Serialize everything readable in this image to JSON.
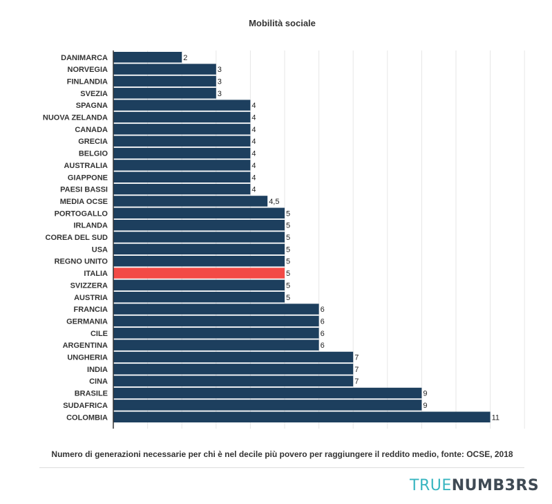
{
  "title": "Mobilità sociale",
  "caption": "Numero di generazioni necessarie per chi è nel decile più povero per raggiungere il reddito medio, fonte: OCSE, 2018",
  "brand": {
    "part1": "TRUE",
    "part2": "NUMB3RS"
  },
  "colors": {
    "bar": "#1d3f5e",
    "highlight": "#f24a46",
    "brand_light": "#37b5c0",
    "brand_dark": "#3f4a54"
  },
  "chart_data": {
    "type": "bar",
    "orientation": "horizontal",
    "title": "Mobilità sociale",
    "xlim": [
      0,
      12
    ],
    "grid": true,
    "highlight": "ITALIA",
    "categories": [
      "DANIMARCA",
      "NORVEGIA",
      "FINLANDIA",
      "SVEZIA",
      "SPAGNA",
      "NUOVA ZELANDA",
      "CANADA",
      "GRECIA",
      "BELGIO",
      "AUSTRALIA",
      "GIAPPONE",
      "PAESI BASSI",
      "MEDIA OCSE",
      "PORTOGALLO",
      "IRLANDA",
      "COREA DEL SUD",
      "USA",
      "REGNO UNITO",
      "ITALIA",
      "SVIZZERA",
      "AUSTRIA",
      "FRANCIA",
      "GERMANIA",
      "CILE",
      "ARGENTINA",
      "UNGHERIA",
      "INDIA",
      "CINA",
      "BRASILE",
      "SUDAFRICA",
      "COLOMBIA"
    ],
    "values": [
      2,
      3,
      3,
      3,
      4,
      4,
      4,
      4,
      4,
      4,
      4,
      4,
      4.5,
      5,
      5,
      5,
      5,
      5,
      5,
      5,
      5,
      6,
      6,
      6,
      6,
      7,
      7,
      7,
      9,
      9,
      11
    ],
    "value_labels": [
      "2",
      "3",
      "3",
      "3",
      "4",
      "4",
      "4",
      "4",
      "4",
      "4",
      "4",
      "4",
      "4,5",
      "5",
      "5",
      "5",
      "5",
      "5",
      "5",
      "5",
      "5",
      "6",
      "6",
      "6",
      "6",
      "7",
      "7",
      "7",
      "9",
      "9",
      "11"
    ]
  }
}
